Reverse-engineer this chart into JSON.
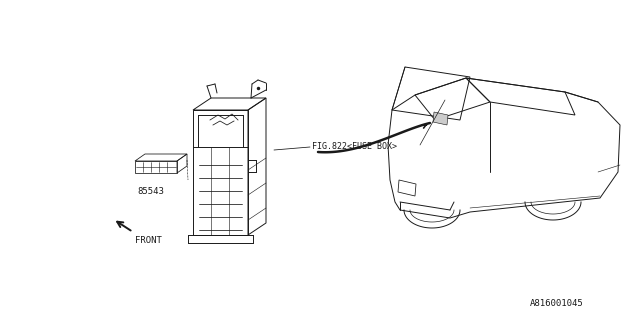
{
  "background_color": "#ffffff",
  "line_color": "#1a1a1a",
  "line_width": 0.7,
  "fig_width": 6.4,
  "fig_height": 3.2,
  "dpi": 100,
  "diagram_id": "A816001045",
  "front_label": "FRONT",
  "fuse_box_label": "FIG.822<FUSE BOX>",
  "part_label": "85543"
}
